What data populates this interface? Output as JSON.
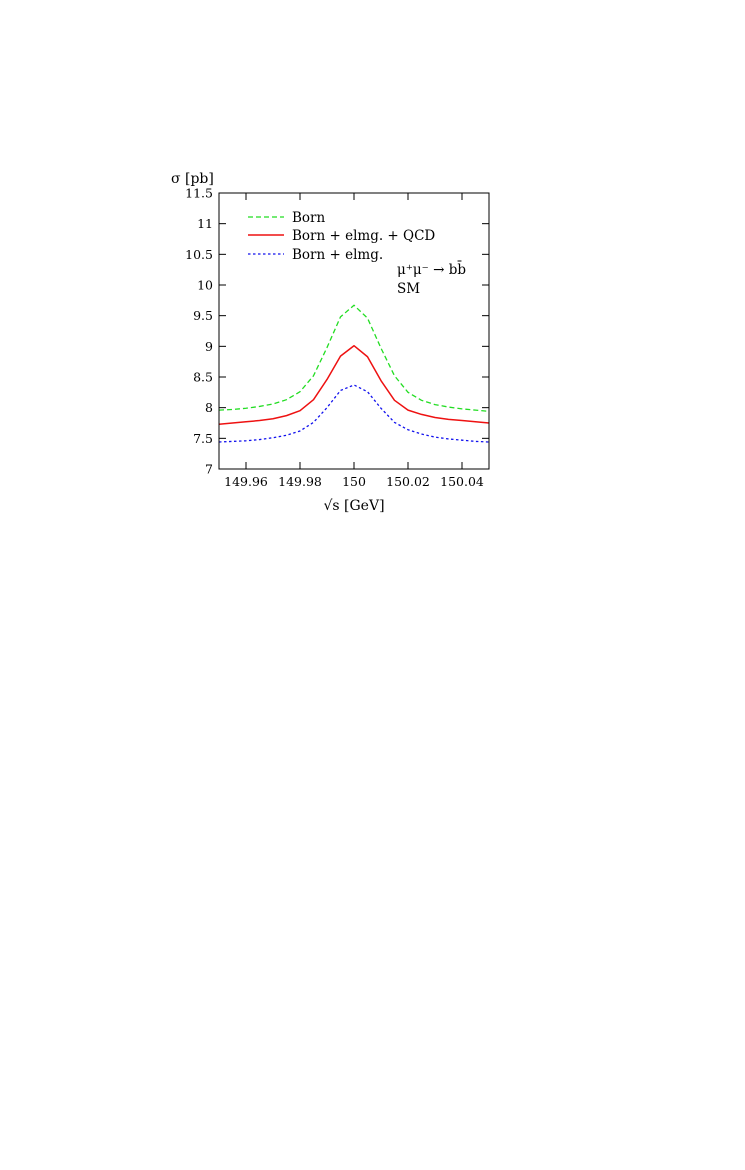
{
  "chart_data": {
    "type": "line",
    "xlabel": "√s [GeV]",
    "ylabel": "σ [pb]",
    "xlim": [
      149.95,
      150.05
    ],
    "ylim": [
      7,
      11.5
    ],
    "xticks": [
      149.96,
      149.98,
      150,
      150.02,
      150.04
    ],
    "xtick_labels": [
      "149.96",
      "149.98",
      "150",
      "150.02",
      "150.04"
    ],
    "yticks": [
      7,
      7.5,
      8,
      8.5,
      9,
      9.5,
      10,
      10.5,
      11,
      11.5
    ],
    "ytick_labels": [
      "7",
      "7.5",
      "8",
      "8.5",
      "9",
      "9.5",
      "10",
      "10.5",
      "11",
      "11.5"
    ],
    "annotation": [
      "μ⁺μ⁻ → bb̄",
      "SM"
    ],
    "legend_position": "top-left",
    "grid": false,
    "x": [
      149.95,
      149.955,
      149.96,
      149.965,
      149.97,
      149.975,
      149.98,
      149.985,
      149.99,
      149.995,
      150.0,
      150.005,
      150.01,
      150.015,
      150.02,
      150.025,
      150.03,
      150.035,
      150.04,
      150.045,
      150.05
    ],
    "series": [
      {
        "name": "Born",
        "color": "#22dd22",
        "dash": "dashed",
        "values": [
          7.96,
          7.97,
          7.99,
          8.02,
          8.06,
          8.13,
          8.26,
          8.52,
          8.98,
          9.48,
          9.67,
          9.46,
          8.97,
          8.52,
          8.25,
          8.12,
          8.05,
          8.01,
          7.98,
          7.96,
          7.94
        ]
      },
      {
        "name": "Born + elmg. + QCD",
        "color": "#ee1111",
        "dash": "solid",
        "values": [
          7.73,
          7.75,
          7.77,
          7.79,
          7.82,
          7.87,
          7.95,
          8.13,
          8.46,
          8.84,
          9.01,
          8.83,
          8.44,
          8.12,
          7.96,
          7.89,
          7.84,
          7.81,
          7.79,
          7.77,
          7.75
        ]
      },
      {
        "name": "Born + elmg.",
        "color": "#1111ee",
        "dash": "dotted",
        "values": [
          7.44,
          7.45,
          7.46,
          7.48,
          7.51,
          7.55,
          7.62,
          7.76,
          8.0,
          8.28,
          8.37,
          8.26,
          7.99,
          7.76,
          7.64,
          7.57,
          7.52,
          7.49,
          7.47,
          7.45,
          7.44
        ]
      }
    ]
  }
}
